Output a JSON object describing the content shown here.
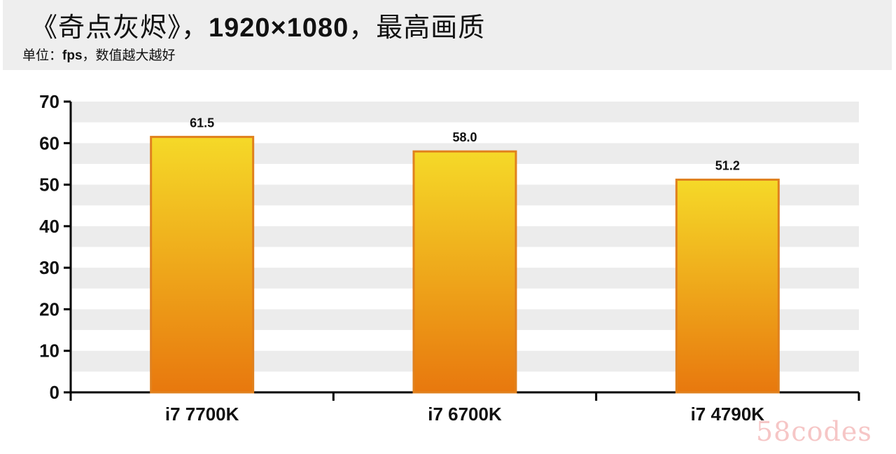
{
  "header": {
    "title": "《奇点灰烬》，1920×1080，最高画质",
    "subtitle": "单位：fps，数值越大越好"
  },
  "watermark": "58codes",
  "chart_data": {
    "type": "bar",
    "categories": [
      "i7 7700K",
      "i7 6700K",
      "i7 4790K"
    ],
    "values": [
      61.5,
      58.0,
      51.2
    ],
    "value_labels": [
      "61.5",
      "58.0",
      "51.2"
    ],
    "ylim": [
      0,
      70
    ],
    "yticks": [
      0,
      10,
      20,
      30,
      40,
      50,
      60,
      70
    ],
    "grid": "alternating horizontal bands",
    "legend": "none",
    "bar_gradient": [
      "#f5d928",
      "#e8780e"
    ],
    "bar_border_color": "#e0811e",
    "band_color": "#ececec"
  }
}
